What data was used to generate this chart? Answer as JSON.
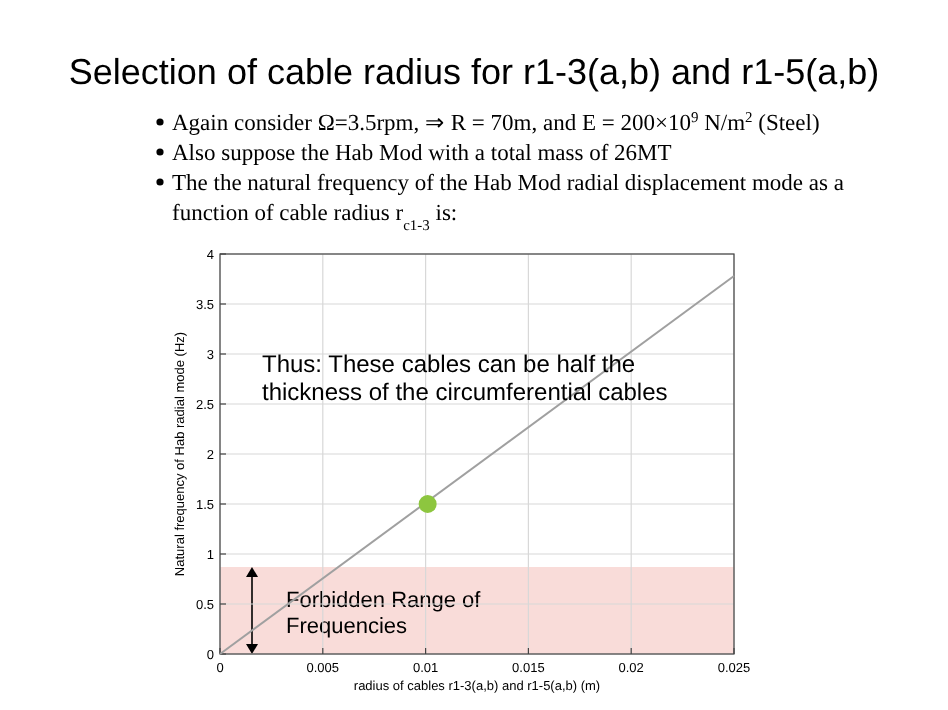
{
  "chart_data": {
    "type": "line",
    "title": "Selection of cable radius for r1-3(a,b) and r1-5(a,b)",
    "subtitle": [
      "Again consider Ω=3.5rpm, ⇒ R = 70m, and E = 200×10$^{9}$ N/m$^{2}$  (Steel)",
      "Also suppose the Hab Mod with a total mass of 26MT",
      "The the natural frequency of the Hab Mod radial displacement mode as a function of cable radius r$_{c1-3}$ is:"
    ],
    "xlabel": "radius of cables r1-3(a,b) and r1-5(a,b) (m)",
    "ylabel": "Natural frequency of Hab radial mode (Hz)",
    "series": [
      {
        "color": "#a0a0a0",
        "x": [
          0,
          0.025
        ],
        "values": [
          0,
          3.78
        ],
        "marker": "none"
      },
      {
        "type": "scatter",
        "color": "#8dc63f",
        "x": [
          0.0101
        ],
        "values": [
          1.5
        ],
        "marker": "circle"
      }
    ],
    "xlim": [
      0,
      0.025
    ],
    "xticks": [
      0,
      0.005,
      0.01,
      0.015,
      0.02,
      0.025
    ],
    "ylim": [
      0,
      4
    ],
    "yticks": [
      0,
      0.5,
      1,
      1.5,
      2,
      2.5,
      3,
      3.5,
      4
    ],
    "grid": true,
    "bands": [
      {
        "axis": "y",
        "from": 0,
        "to": 0.87,
        "label": "Forbidden Range of Frequencies",
        "color": "#f9dcd9"
      }
    ],
    "annotations": [
      "Thus: These cables can be half the thickness of the circumferential cables"
    ]
  }
}
